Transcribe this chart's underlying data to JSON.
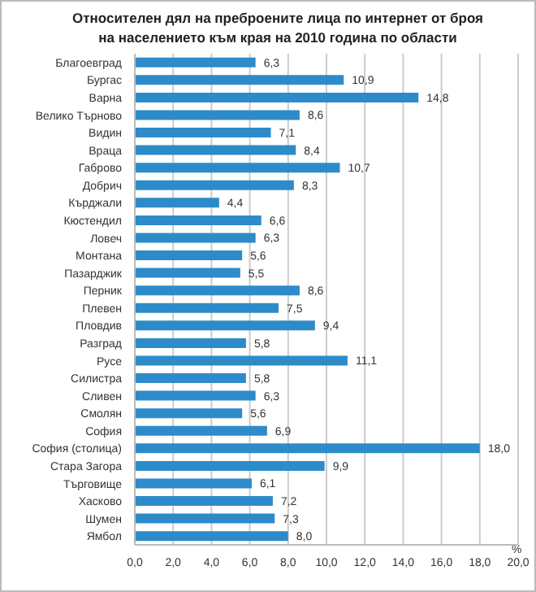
{
  "chart_data": {
    "type": "bar",
    "orientation": "horizontal",
    "title": "Относителен дял на преброените лица по интернет от броя на населението към края на 2010 година по области",
    "xlabel": "%",
    "categories": [
      "Благоевград",
      "Бургас",
      "Варна",
      "Велико Търново",
      "Видин",
      "Враца",
      "Габрово",
      "Добрич",
      "Кърджали",
      "Кюстендил",
      "Ловеч",
      "Монтана",
      "Пазарджик",
      "Перник",
      "Плевен",
      "Пловдив",
      "Разград",
      "Русе",
      "Силистра",
      "Сливен",
      "Смолян",
      "София",
      "София (столица)",
      "Стара Загора",
      "Търговище",
      "Хасково",
      "Шумен",
      "Ямбол"
    ],
    "values": [
      6.3,
      10.9,
      14.8,
      8.6,
      7.1,
      8.4,
      10.7,
      8.3,
      4.4,
      6.6,
      6.3,
      5.6,
      5.5,
      8.6,
      7.5,
      9.4,
      5.8,
      11.1,
      5.8,
      6.3,
      5.6,
      6.9,
      18.0,
      9.9,
      6.1,
      7.2,
      7.3,
      8.0
    ],
    "value_labels": [
      "6,3",
      "10,9",
      "14,8",
      "8,6",
      "7,1",
      "8,4",
      "10,7",
      "8,3",
      "4,4",
      "6,6",
      "6,3",
      "5,6",
      "5,5",
      "8,6",
      "7,5",
      "9,4",
      "5,8",
      "11,1",
      "5,8",
      "6,3",
      "5,6",
      "6,9",
      "18,0",
      "9,9",
      "6,1",
      "7,2",
      "7,3",
      "8,0"
    ],
    "color": "#2e8bc9",
    "xlim": [
      0,
      20
    ],
    "xticks": [
      {
        "value": 0,
        "label": "0,0"
      },
      {
        "value": 2,
        "label": "2,0"
      },
      {
        "value": 4,
        "label": "4,0"
      },
      {
        "value": 6,
        "label": "6,0"
      },
      {
        "value": 8,
        "label": "8,0"
      },
      {
        "value": 10,
        "label": "10,0"
      },
      {
        "value": 12,
        "label": "12,0"
      },
      {
        "value": 14,
        "label": "14,0"
      },
      {
        "value": 16,
        "label": "16,0"
      },
      {
        "value": 18,
        "label": "18,0"
      },
      {
        "value": 20,
        "label": "20,0"
      }
    ],
    "grid": "x",
    "legend": false
  }
}
